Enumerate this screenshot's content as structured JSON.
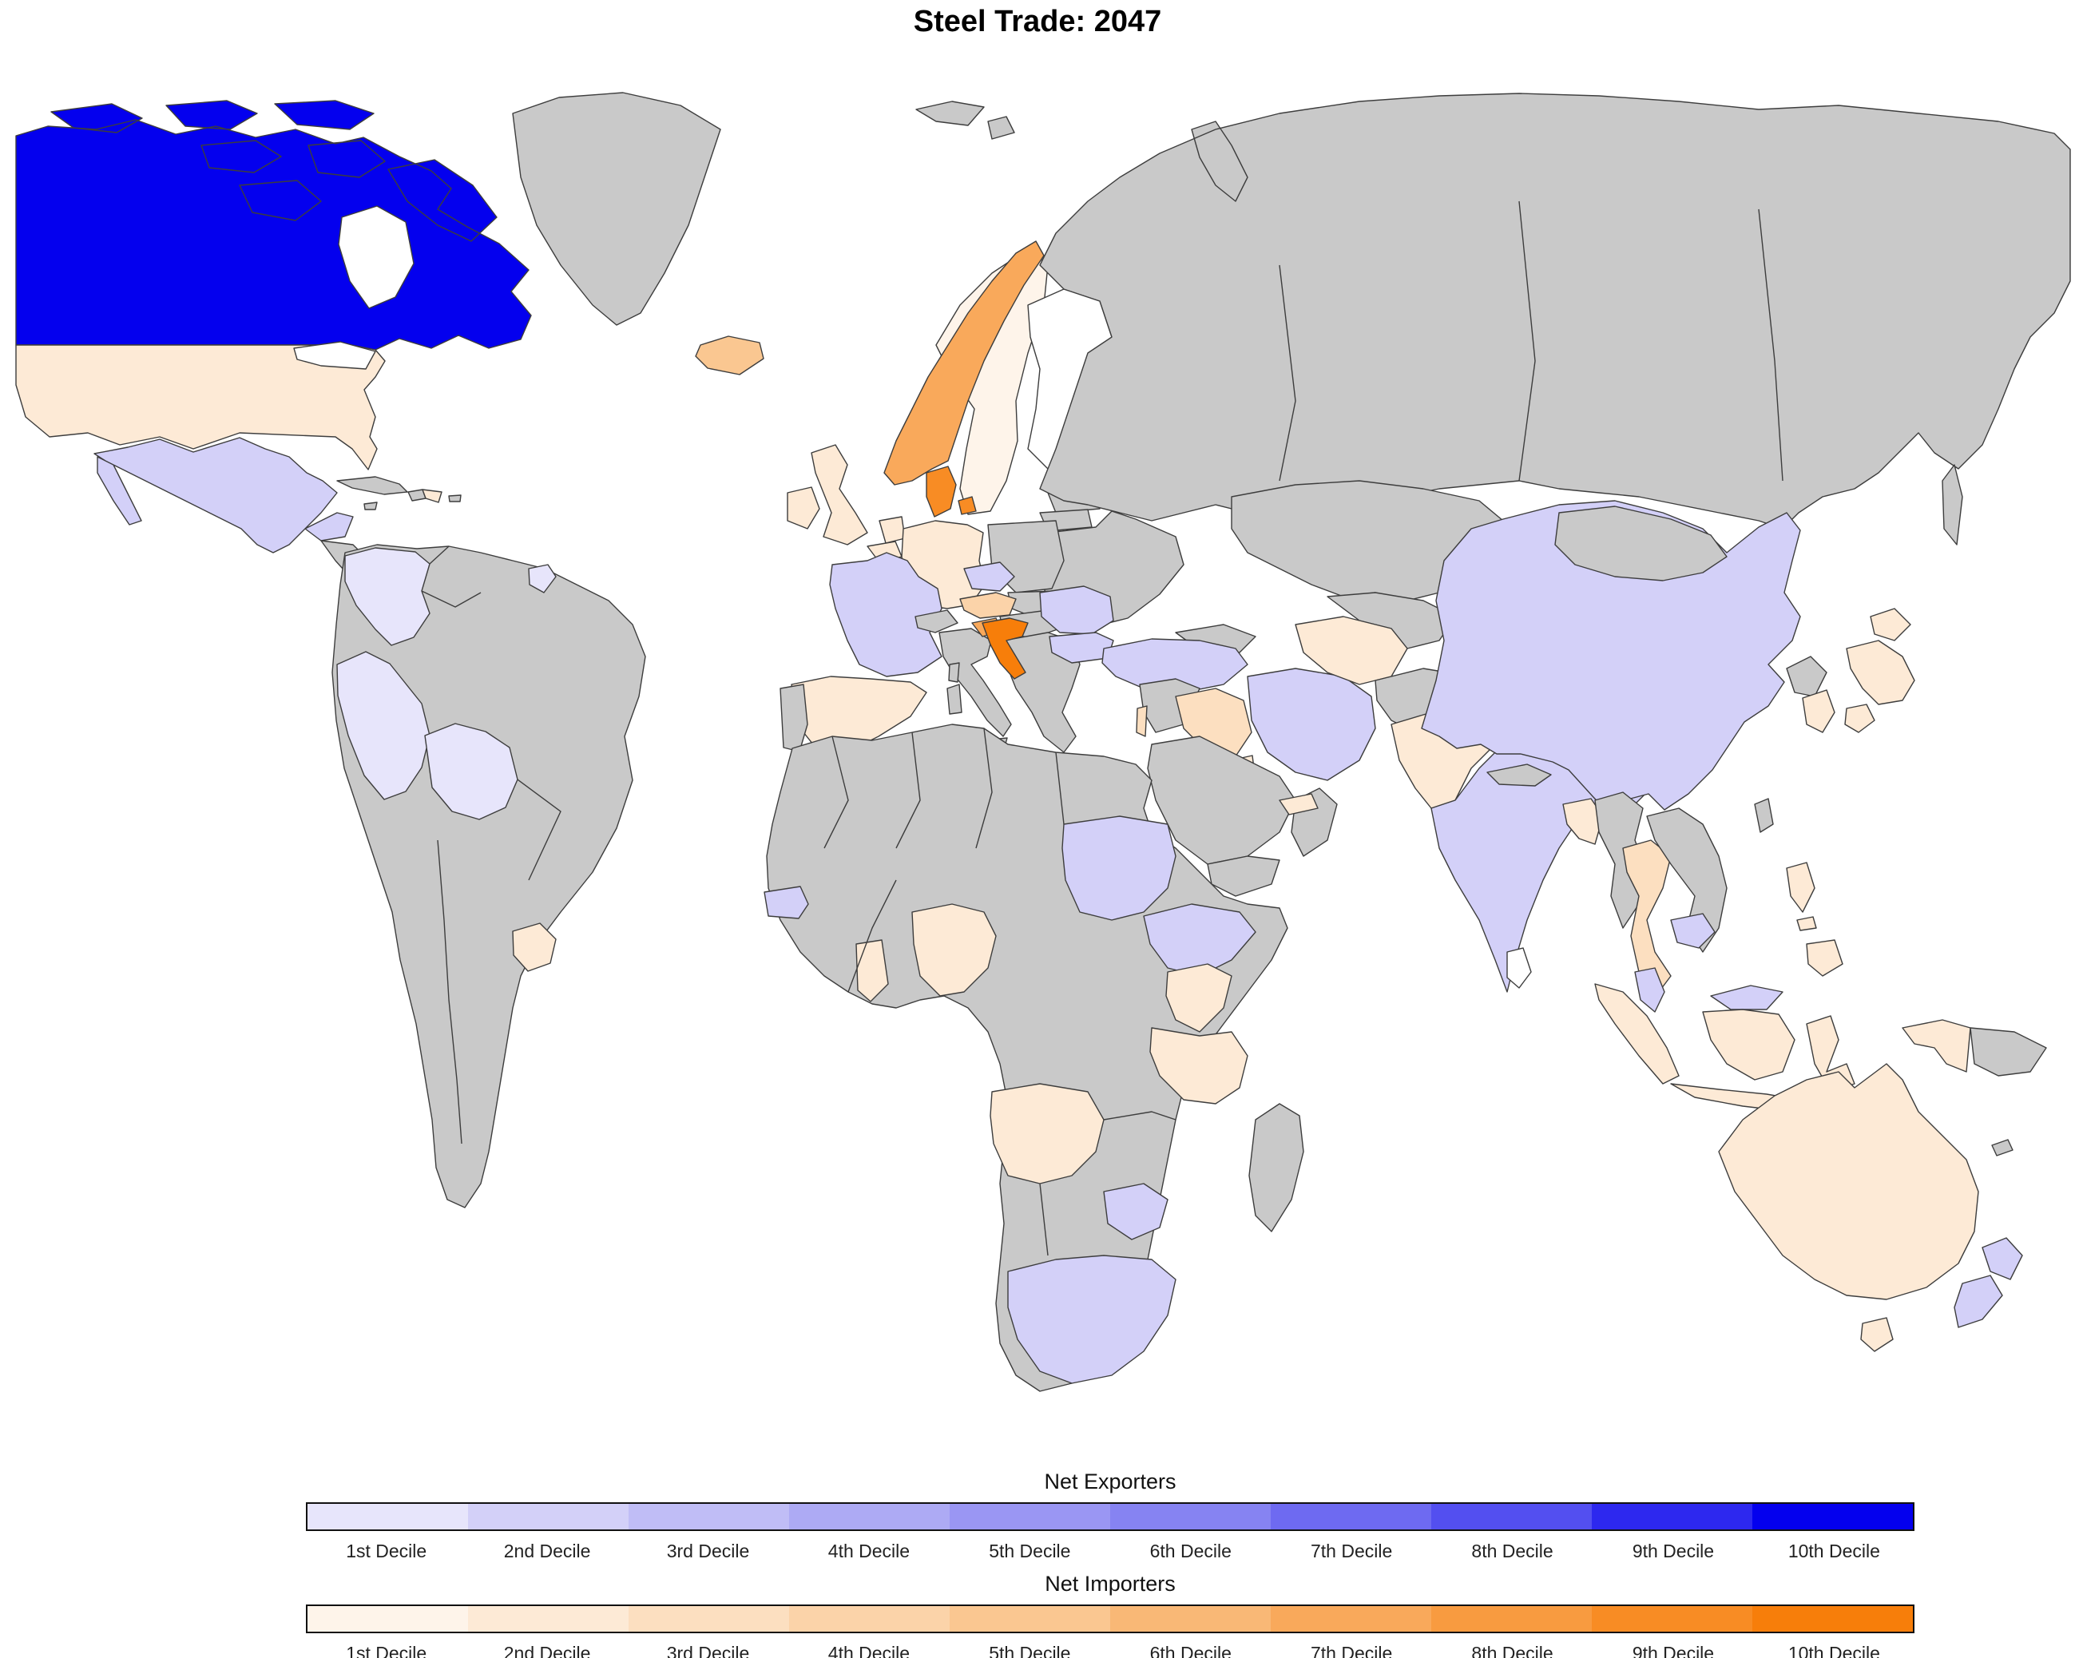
{
  "chart_data": {
    "type": "heatmap",
    "subtype": "world_choropleth",
    "title": "Steel Trade: 2047",
    "legend_position": "bottom",
    "ocean_color": "#ffffff",
    "no_data_color": "#c9c9c9",
    "neutral_color": "#ffffff",
    "border_color": "#3d3d3d",
    "scales": [
      {
        "id": "exporters",
        "name": "Net Exporters",
        "labels": [
          "1st Decile",
          "2nd Decile",
          "3rd Decile",
          "4th Decile",
          "5th Decile",
          "6th Decile",
          "7th Decile",
          "8th Decile",
          "9th Decile",
          "10th Decile"
        ],
        "colors": [
          "#e7e5fb",
          "#d3d0f8",
          "#c0bdf6",
          "#adaaf4",
          "#9a96f3",
          "#8683f2",
          "#6e6af1",
          "#534ff0",
          "#2d28ef",
          "#0400ee"
        ]
      },
      {
        "id": "importers",
        "name": "Net Importers",
        "labels": [
          "1st Decile",
          "2nd Decile",
          "3rd Decile",
          "4th Decile",
          "5th Decile",
          "6th Decile",
          "7th Decile",
          "8th Decile",
          "9th Decile",
          "10th Decile"
        ],
        "colors": [
          "#fef4ea",
          "#fdead6",
          "#fcdfc0",
          "#fbd3a9",
          "#fac791",
          "#f9b876",
          "#f9a95b",
          "#f89b40",
          "#f88c24",
          "#f77e0a"
        ]
      }
    ],
    "countries": [
      {
        "name": "Canada",
        "side": "exporter",
        "decile": 10
      },
      {
        "name": "Mexico",
        "side": "exporter",
        "decile": 2
      },
      {
        "name": "Colombia",
        "side": "exporter",
        "decile": 1
      },
      {
        "name": "Peru",
        "side": "exporter",
        "decile": 1
      },
      {
        "name": "Bolivia",
        "side": "exporter",
        "decile": 1
      },
      {
        "name": "French Guiana",
        "side": "exporter",
        "decile": 1
      },
      {
        "name": "France",
        "side": "exporter",
        "decile": 2
      },
      {
        "name": "Czechia",
        "side": "exporter",
        "decile": 2
      },
      {
        "name": "Romania",
        "side": "exporter",
        "decile": 2
      },
      {
        "name": "Bulgaria",
        "side": "exporter",
        "decile": 2
      },
      {
        "name": "Turkey",
        "side": "exporter",
        "decile": 2
      },
      {
        "name": "Iran",
        "side": "exporter",
        "decile": 2
      },
      {
        "name": "Senegal",
        "side": "exporter",
        "decile": 2
      },
      {
        "name": "Sudan",
        "side": "exporter",
        "decile": 2
      },
      {
        "name": "Ethiopia",
        "side": "exporter",
        "decile": 2
      },
      {
        "name": "Zimbabwe",
        "side": "exporter",
        "decile": 2
      },
      {
        "name": "South Africa",
        "side": "exporter",
        "decile": 2
      },
      {
        "name": "China",
        "side": "exporter",
        "decile": 2
      },
      {
        "name": "India",
        "side": "exporter",
        "decile": 2
      },
      {
        "name": "Cambodia",
        "side": "exporter",
        "decile": 2
      },
      {
        "name": "Malaysia",
        "side": "exporter",
        "decile": 2
      },
      {
        "name": "New Zealand",
        "side": "exporter",
        "decile": 2
      },
      {
        "name": "United States",
        "side": "importer",
        "decile": 2
      },
      {
        "name": "Panama",
        "side": "importer",
        "decile": 2
      },
      {
        "name": "Dominican Republic",
        "side": "importer",
        "decile": 2
      },
      {
        "name": "Uruguay",
        "side": "importer",
        "decile": 2
      },
      {
        "name": "Iceland",
        "side": "importer",
        "decile": 5
      },
      {
        "name": "United Kingdom",
        "side": "importer",
        "decile": 2
      },
      {
        "name": "Ireland",
        "side": "importer",
        "decile": 2
      },
      {
        "name": "Spain",
        "side": "importer",
        "decile": 2
      },
      {
        "name": "Germany",
        "side": "importer",
        "decile": 2
      },
      {
        "name": "Netherlands",
        "side": "importer",
        "decile": 2
      },
      {
        "name": "Belgium",
        "side": "importer",
        "decile": 2
      },
      {
        "name": "Sweden",
        "side": "importer",
        "decile": 1
      },
      {
        "name": "Estonia",
        "side": "importer",
        "decile": 1
      },
      {
        "name": "Denmark",
        "side": "importer",
        "decile": 9
      },
      {
        "name": "Norway",
        "side": "importer",
        "decile": 7
      },
      {
        "name": "Austria",
        "side": "importer",
        "decile": 4
      },
      {
        "name": "Slovenia",
        "side": "importer",
        "decile": 7
      },
      {
        "name": "Croatia",
        "side": "importer",
        "decile": 10
      },
      {
        "name": "Israel",
        "side": "importer",
        "decile": 3
      },
      {
        "name": "Iraq",
        "side": "importer",
        "decile": 3
      },
      {
        "name": "Kuwait",
        "side": "importer",
        "decile": 2
      },
      {
        "name": "United Arab Emirates",
        "side": "importer",
        "decile": 2
      },
      {
        "name": "Turkmenistan",
        "side": "importer",
        "decile": 2
      },
      {
        "name": "Pakistan",
        "side": "importer",
        "decile": 2
      },
      {
        "name": "Bangladesh",
        "side": "importer",
        "decile": 2
      },
      {
        "name": "Thailand",
        "side": "importer",
        "decile": 3
      },
      {
        "name": "Indonesia",
        "side": "importer",
        "decile": 2
      },
      {
        "name": "Philippines",
        "side": "importer",
        "decile": 2
      },
      {
        "name": "South Korea",
        "side": "importer",
        "decile": 2
      },
      {
        "name": "Japan",
        "side": "importer",
        "decile": 2
      },
      {
        "name": "Ghana",
        "side": "importer",
        "decile": 2
      },
      {
        "name": "Nigeria",
        "side": "importer",
        "decile": 2
      },
      {
        "name": "Kenya",
        "side": "importer",
        "decile": 2
      },
      {
        "name": "Tanzania",
        "side": "importer",
        "decile": 2
      },
      {
        "name": "Angola",
        "side": "importer",
        "decile": 2
      },
      {
        "name": "Australia",
        "side": "importer",
        "decile": 2
      },
      {
        "name": "Finland",
        "side": "neutral",
        "decile": null
      },
      {
        "name": "Sri Lanka",
        "side": "neutral",
        "decile": null
      },
      {
        "name": "Costa Rica",
        "side": "neutral",
        "decile": null
      },
      {
        "name": "Greenland",
        "side": "no_data",
        "decile": null
      },
      {
        "name": "Russia",
        "side": "no_data",
        "decile": null
      },
      {
        "name": "Svalbard",
        "side": "no_data",
        "decile": null
      },
      {
        "name": "Cuba",
        "side": "no_data",
        "decile": null
      },
      {
        "name": "Haiti",
        "side": "no_data",
        "decile": null
      },
      {
        "name": "Jamaica",
        "side": "no_data",
        "decile": null
      },
      {
        "name": "Puerto Rico",
        "side": "no_data",
        "decile": null
      },
      {
        "name": "Central America",
        "side": "no_data",
        "decile": null
      },
      {
        "name": "South America (no data regions)",
        "side": "no_data",
        "decile": null
      },
      {
        "name": "Portugal",
        "side": "no_data",
        "decile": null
      },
      {
        "name": "Italy",
        "side": "no_data",
        "decile": null
      },
      {
        "name": "Corsica",
        "side": "no_data",
        "decile": null
      },
      {
        "name": "Switzerland",
        "side": "no_data",
        "decile": null
      },
      {
        "name": "Poland",
        "side": "no_data",
        "decile": null
      },
      {
        "name": "Slovakia",
        "side": "no_data",
        "decile": null
      },
      {
        "name": "Hungary",
        "side": "no_data",
        "decile": null
      },
      {
        "name": "Balkans",
        "side": "no_data",
        "decile": null
      },
      {
        "name": "Latvia",
        "side": "no_data",
        "decile": null
      },
      {
        "name": "Lithuania",
        "side": "no_data",
        "decile": null
      },
      {
        "name": "Ukraine & Belarus",
        "side": "no_data",
        "decile": null
      },
      {
        "name": "Africa (no data regions)",
        "side": "no_data",
        "decile": null
      },
      {
        "name": "Madagascar",
        "side": "no_data",
        "decile": null
      },
      {
        "name": "Saudi Arabia",
        "side": "no_data",
        "decile": null
      },
      {
        "name": "Yemen",
        "side": "no_data",
        "decile": null
      },
      {
        "name": "Oman",
        "side": "no_data",
        "decile": null
      },
      {
        "name": "Syria & Jordan",
        "side": "no_data",
        "decile": null
      },
      {
        "name": "Caucasus",
        "side": "no_data",
        "decile": null
      },
      {
        "name": "Kazakhstan",
        "side": "no_data",
        "decile": null
      },
      {
        "name": "Central Asia",
        "side": "no_data",
        "decile": null
      },
      {
        "name": "Afghanistan",
        "side": "no_data",
        "decile": null
      },
      {
        "name": "Mongolia",
        "side": "no_data",
        "decile": null
      },
      {
        "name": "North Korea",
        "side": "no_data",
        "decile": null
      },
      {
        "name": "Myanmar",
        "side": "no_data",
        "decile": null
      },
      {
        "name": "Vietnam & Laos",
        "side": "no_data",
        "decile": null
      },
      {
        "name": "Taiwan",
        "side": "no_data",
        "decile": null
      },
      {
        "name": "Papua New Guinea",
        "side": "no_data",
        "decile": null
      },
      {
        "name": "New Caledonia",
        "side": "no_data",
        "decile": null
      }
    ]
  }
}
